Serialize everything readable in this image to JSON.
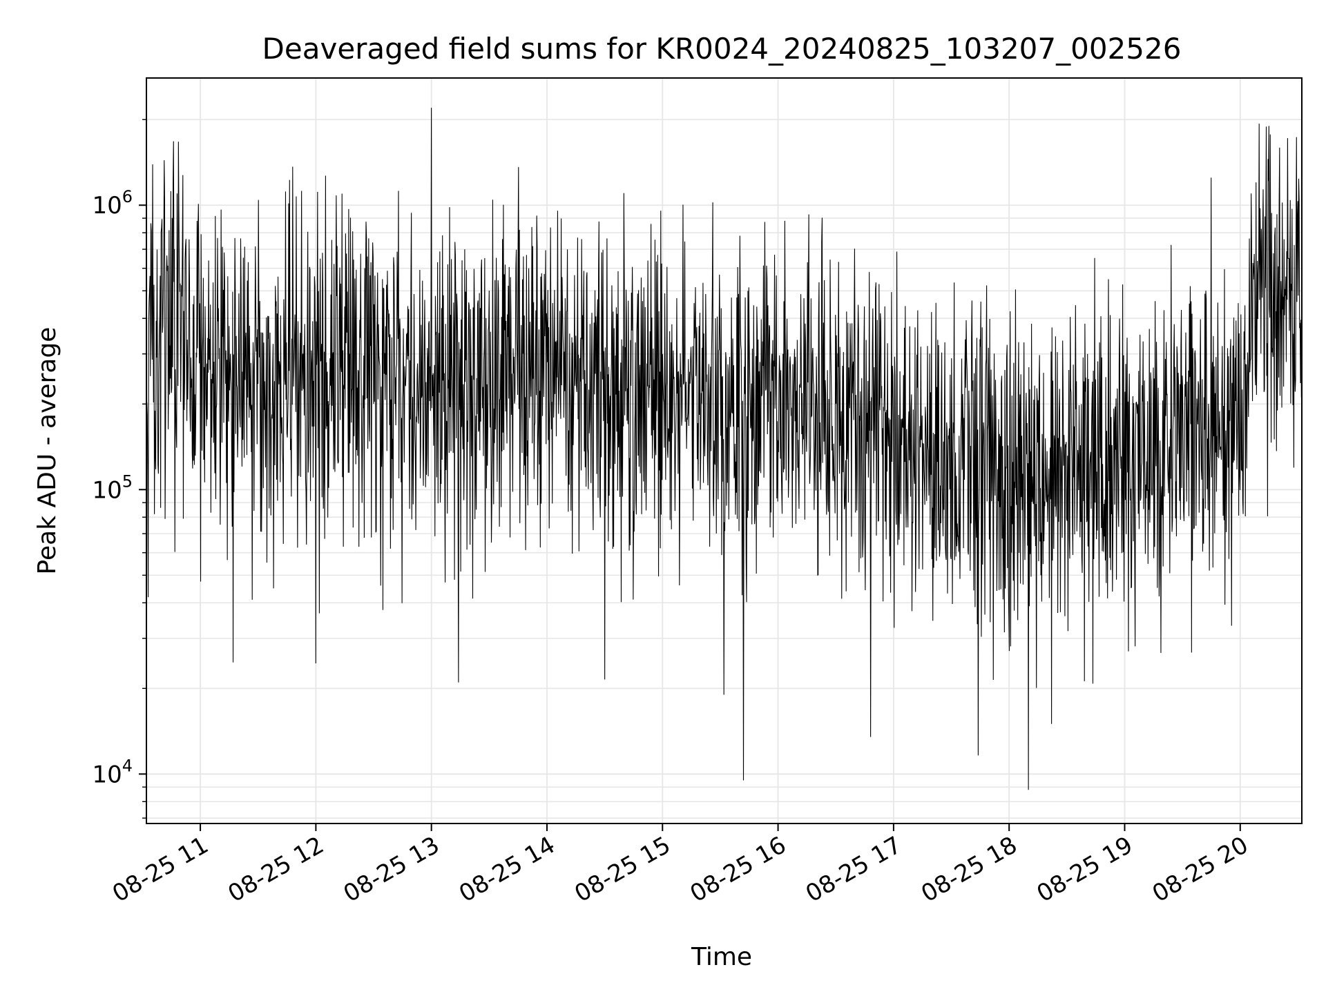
{
  "chart_data": {
    "type": "line",
    "title": "Deaveraged field sums for KR0024_20240825_103207_002526",
    "xlabel": "Time",
    "ylabel": "Peak ADU - average",
    "yscale": "log",
    "ylim": [
      6700,
      2800000
    ],
    "xlim": [
      "2024-08-25T10:32",
      "2024-08-25T20:32"
    ],
    "x_ticks": [
      {
        "label": "08-25 11",
        "value": "2024-08-25T11:00"
      },
      {
        "label": "08-25 12",
        "value": "2024-08-25T12:00"
      },
      {
        "label": "08-25 13",
        "value": "2024-08-25T13:00"
      },
      {
        "label": "08-25 14",
        "value": "2024-08-25T14:00"
      },
      {
        "label": "08-25 15",
        "value": "2024-08-25T15:00"
      },
      {
        "label": "08-25 16",
        "value": "2024-08-25T16:00"
      },
      {
        "label": "08-25 17",
        "value": "2024-08-25T17:00"
      },
      {
        "label": "08-25 18",
        "value": "2024-08-25T18:00"
      },
      {
        "label": "08-25 19",
        "value": "2024-08-25T19:00"
      },
      {
        "label": "08-25 20",
        "value": "2024-08-25T20:00"
      }
    ],
    "y_ticks": [
      {
        "base": "10",
        "exp": "4",
        "value": 10000
      },
      {
        "base": "10",
        "exp": "5",
        "value": 100000
      },
      {
        "base": "10",
        "exp": "6",
        "value": 1000000
      }
    ],
    "grid": true,
    "line_color": "#000000",
    "grid_color": "#e6e6e6",
    "series": [
      {
        "x": [
          "2024-08-25T10:32",
          "2024-08-25T10:50",
          "2024-08-25T11:00",
          "2024-08-25T11:30",
          "2024-08-25T12:00",
          "2024-08-25T12:30",
          "2024-08-25T13:00",
          "2024-08-25T13:30",
          "2024-08-25T14:00",
          "2024-08-25T14:30",
          "2024-08-25T15:00",
          "2024-08-25T15:30",
          "2024-08-25T16:00",
          "2024-08-25T16:30",
          "2024-08-25T17:00",
          "2024-08-25T17:30",
          "2024-08-25T18:00",
          "2024-08-25T18:30",
          "2024-08-25T19:00",
          "2024-08-25T19:30",
          "2024-08-25T20:00",
          "2024-08-25T20:10",
          "2024-08-25T20:32"
        ],
        "y": [
          250000,
          450000,
          300000,
          230000,
          260000,
          290000,
          250000,
          240000,
          240000,
          230000,
          210000,
          200000,
          190000,
          170000,
          160000,
          140000,
          110000,
          115000,
          130000,
          150000,
          170000,
          600000,
          400000
        ],
        "spikes": [
          {
            "x": "2024-08-25T13:00",
            "y": 2200000
          },
          {
            "x": "2024-08-25T20:15",
            "y": 1900000
          },
          {
            "x": "2024-08-25T19:45",
            "y": 1250000
          },
          {
            "x": "2024-08-25T10:48",
            "y": 1100000
          },
          {
            "x": "2024-08-25T15:42",
            "y": 9500
          },
          {
            "x": "2024-08-25T18:10",
            "y": 8800
          },
          {
            "x": "2024-08-25T16:48",
            "y": 13500
          },
          {
            "x": "2024-08-25T18:22",
            "y": 15000
          },
          {
            "x": "2024-08-25T15:32",
            "y": 19000
          },
          {
            "x": "2024-08-25T12:00",
            "y": 24500
          },
          {
            "x": "2024-08-25T13:14",
            "y": 21000
          },
          {
            "x": "2024-08-25T14:30",
            "y": 21500
          },
          {
            "x": "2024-08-25T11:27",
            "y": 41000
          }
        ]
      }
    ]
  }
}
